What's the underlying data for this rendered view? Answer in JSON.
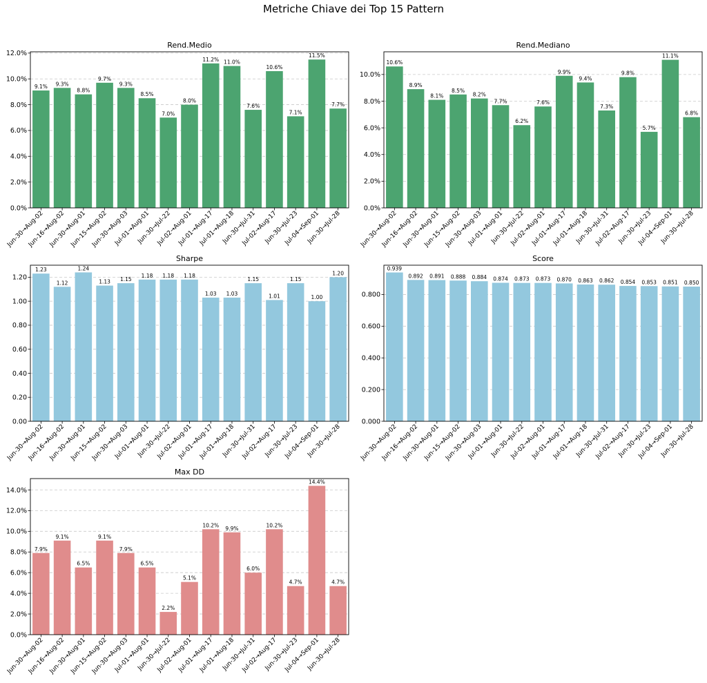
{
  "figure": {
    "title": "Metriche Chiave dei Top 15 Pattern"
  },
  "chart_data": [
    {
      "type": "bar",
      "title": "Rend.Medio",
      "color": "#4ca470",
      "categories": [
        "Jun-30→Aug-02",
        "Jun-16→Aug-02",
        "Jun-30→Aug-01",
        "Jun-15→Aug-02",
        "Jun-30→Aug-03",
        "Jul-01→Aug-01",
        "Jun-30→Jul-22",
        "Jul-02→Aug-01",
        "Jul-01→Aug-17",
        "Jul-01→Aug-18",
        "Jun-30→Jul-31",
        "Jul-02→Aug-17",
        "Jun-30→Jul-23",
        "Jul-04→Sep-01",
        "Jun-30→Jul-28"
      ],
      "values": [
        9.1,
        9.3,
        8.8,
        9.7,
        9.3,
        8.5,
        7.0,
        8.0,
        11.2,
        11.0,
        7.6,
        10.6,
        7.1,
        11.5,
        7.7
      ],
      "value_labels": [
        "9.1%",
        "9.3%",
        "8.8%",
        "9.7%",
        "9.3%",
        "8.5%",
        "7.0%",
        "8.0%",
        "11.2%",
        "11.0%",
        "7.6%",
        "10.6%",
        "7.1%",
        "11.5%",
        "7.7%"
      ],
      "yticks": [
        0,
        2,
        4,
        6,
        8,
        10,
        12
      ],
      "ytick_labels": [
        "0.0%",
        "2.0%",
        "4.0%",
        "6.0%",
        "8.0%",
        "10.0%",
        "12.0%"
      ],
      "ylim": [
        0,
        12.1
      ],
      "grid": "y-dashed"
    },
    {
      "type": "bar",
      "title": "Rend.Mediano",
      "color": "#4ca470",
      "categories": [
        "Jun-30→Aug-02",
        "Jun-16→Aug-02",
        "Jun-30→Aug-01",
        "Jun-15→Aug-02",
        "Jun-30→Aug-03",
        "Jul-01→Aug-01",
        "Jun-30→Jul-22",
        "Jul-02→Aug-01",
        "Jul-01→Aug-17",
        "Jul-01→Aug-18",
        "Jun-30→Jul-31",
        "Jul-02→Aug-17",
        "Jun-30→Jul-23",
        "Jul-04→Sep-01",
        "Jun-30→Jul-28"
      ],
      "values": [
        10.6,
        8.9,
        8.1,
        8.5,
        8.2,
        7.7,
        6.2,
        7.6,
        9.9,
        9.4,
        7.3,
        9.8,
        5.7,
        11.1,
        6.8
      ],
      "value_labels": [
        "10.6%",
        "8.9%",
        "8.1%",
        "8.5%",
        "8.2%",
        "7.7%",
        "6.2%",
        "7.6%",
        "9.9%",
        "9.4%",
        "7.3%",
        "9.8%",
        "5.7%",
        "11.1%",
        "6.8%"
      ],
      "yticks": [
        0,
        2,
        4,
        6,
        8,
        10
      ],
      "ytick_labels": [
        "0.0%",
        "2.0%",
        "4.0%",
        "6.0%",
        "8.0%",
        "10.0%"
      ],
      "ylim": [
        0,
        11.7
      ],
      "grid": "y-dashed"
    },
    {
      "type": "bar",
      "title": "Sharpe",
      "color": "#93c8de",
      "categories": [
        "Jun-30→Aug-02",
        "Jun-16→Aug-02",
        "Jun-30→Aug-01",
        "Jun-15→Aug-02",
        "Jun-30→Aug-03",
        "Jul-01→Aug-01",
        "Jun-30→Jul-22",
        "Jul-02→Aug-01",
        "Jul-01→Aug-17",
        "Jul-01→Aug-18",
        "Jun-30→Jul-31",
        "Jul-02→Aug-17",
        "Jun-30→Jul-23",
        "Jul-04→Sep-01",
        "Jun-30→Jul-28"
      ],
      "values": [
        1.23,
        1.12,
        1.24,
        1.13,
        1.15,
        1.18,
        1.18,
        1.18,
        1.03,
        1.03,
        1.15,
        1.01,
        1.15,
        1.0,
        1.2
      ],
      "value_labels": [
        "1.23",
        "1.12",
        "1.24",
        "1.13",
        "1.15",
        "1.18",
        "1.18",
        "1.18",
        "1.03",
        "1.03",
        "1.15",
        "1.01",
        "1.15",
        "1.00",
        "1.20"
      ],
      "yticks": [
        0,
        0.2,
        0.4,
        0.6,
        0.8,
        1.0,
        1.2
      ],
      "ytick_labels": [
        "0.00",
        "0.20",
        "0.40",
        "0.60",
        "0.80",
        "1.00",
        "1.20"
      ],
      "ylim": [
        0,
        1.3
      ],
      "grid": "y-dashed"
    },
    {
      "type": "bar",
      "title": "Score",
      "color": "#93c8de",
      "categories": [
        "Jun-30→Aug-02",
        "Jun-16→Aug-02",
        "Jun-30→Aug-01",
        "Jun-15→Aug-02",
        "Jun-30→Aug-03",
        "Jul-01→Aug-01",
        "Jun-30→Jul-22",
        "Jul-02→Aug-01",
        "Jul-01→Aug-17",
        "Jul-01→Aug-18",
        "Jun-30→Jul-31",
        "Jul-02→Aug-17",
        "Jun-30→Jul-23",
        "Jul-04→Sep-01",
        "Jun-30→Jul-28"
      ],
      "values": [
        0.939,
        0.892,
        0.891,
        0.888,
        0.884,
        0.874,
        0.873,
        0.873,
        0.87,
        0.863,
        0.862,
        0.854,
        0.853,
        0.851,
        0.85
      ],
      "value_labels": [
        "0.939",
        "0.892",
        "0.891",
        "0.888",
        "0.884",
        "0.874",
        "0.873",
        "0.873",
        "0.870",
        "0.863",
        "0.862",
        "0.854",
        "0.853",
        "0.851",
        "0.850"
      ],
      "yticks": [
        0,
        0.2,
        0.4,
        0.6,
        0.8
      ],
      "ytick_labels": [
        "0.000",
        "0.200",
        "0.400",
        "0.600",
        "0.800"
      ],
      "ylim": [
        0,
        0.985
      ],
      "grid": "y-dashed"
    },
    {
      "type": "bar",
      "title": "Max DD",
      "color": "#e08c8c",
      "categories": [
        "Jun-30→Aug-02",
        "Jun-16→Aug-02",
        "Jun-30→Aug-01",
        "Jun-15→Aug-02",
        "Jun-30→Aug-03",
        "Jul-01→Aug-01",
        "Jun-30→Jul-22",
        "Jul-02→Aug-01",
        "Jul-01→Aug-17",
        "Jul-01→Aug-18",
        "Jun-30→Jul-31",
        "Jul-02→Aug-17",
        "Jun-30→Jul-23",
        "Jul-04→Sep-01",
        "Jun-30→Jul-28"
      ],
      "values": [
        7.9,
        9.1,
        6.5,
        9.1,
        7.9,
        6.5,
        2.2,
        5.1,
        10.2,
        9.9,
        6.0,
        10.2,
        4.7,
        14.4,
        4.7
      ],
      "value_labels": [
        "7.9%",
        "9.1%",
        "6.5%",
        "9.1%",
        "7.9%",
        "6.5%",
        "2.2%",
        "5.1%",
        "10.2%",
        "9.9%",
        "6.0%",
        "10.2%",
        "4.7%",
        "14.4%",
        "4.7%"
      ],
      "yticks": [
        0,
        2,
        4,
        6,
        8,
        10,
        12,
        14
      ],
      "ytick_labels": [
        "0.0%",
        "2.0%",
        "4.0%",
        "6.0%",
        "8.0%",
        "10.0%",
        "12.0%",
        "14.0%"
      ],
      "ylim": [
        0,
        15.1
      ],
      "grid": "y-dashed"
    }
  ]
}
